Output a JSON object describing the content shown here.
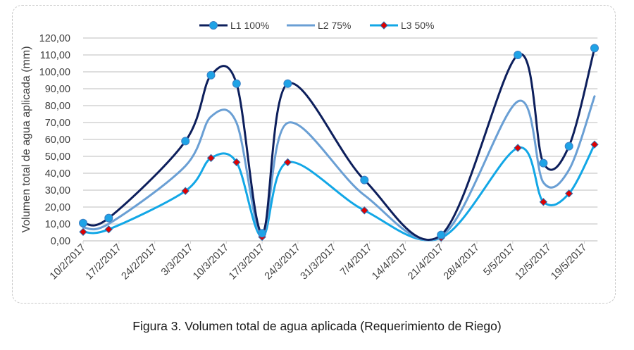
{
  "chart_data": {
    "type": "line",
    "smooth": true,
    "title": "",
    "caption": "Figura 3. Volumen total de agua aplicada (Requerimiento de Riego)",
    "ylabel": "Volumen total de agua aplicada (mm)",
    "xlabel": "",
    "ylim": [
      0,
      120
    ],
    "yticks": [
      0,
      10,
      20,
      30,
      40,
      50,
      60,
      70,
      80,
      90,
      100,
      110,
      120
    ],
    "ytick_labels": [
      "0,00",
      "10,00",
      "20,00",
      "30,00",
      "40,00",
      "50,00",
      "60,00",
      "70,00",
      "80,00",
      "90,00",
      "100,00",
      "110,00",
      "120,00"
    ],
    "x_axis": {
      "start_date": "2017-02-10",
      "tick_interval_days": 7,
      "tick_labels": [
        "10/2/2017",
        "17/2/2017",
        "24/2/2017",
        "3/3/2017",
        "10/3/2017",
        "17/3/2017",
        "24/3/2017",
        "31/3/2017",
        "7/4/2017",
        "14/4/2017",
        "21/4/2017",
        "28/4/2017",
        "5/5/2017",
        "12/5/2017",
        "19/5/2017"
      ],
      "range_days": [
        0,
        101
      ]
    },
    "grid": true,
    "legend_position": "top",
    "x_days": [
      0,
      5,
      20,
      25,
      30,
      35,
      40,
      55,
      70,
      85,
      90,
      95,
      100
    ],
    "series": [
      {
        "name": "L1 100%",
        "color": "#0d1f5c",
        "marker": "circle",
        "marker_color": "#1fa3e6",
        "values": [
          10.5,
          13.5,
          59,
          98,
          93,
          4.5,
          93,
          36,
          3.5,
          110,
          46,
          56,
          114
        ]
      },
      {
        "name": "L2 75%",
        "color": "#6a9fd4",
        "marker": "none",
        "marker_color": "",
        "values": [
          7.9,
          10.1,
          44.3,
          73.5,
          69.8,
          3.4,
          69.8,
          27,
          2.6,
          82.5,
          34.5,
          42,
          85.5
        ]
      },
      {
        "name": "L3 50%",
        "color": "#12a7e6",
        "marker": "diamond",
        "marker_color": "#e00000",
        "values": [
          5.3,
          6.8,
          29.5,
          49,
          46.5,
          2.3,
          46.5,
          18,
          1.8,
          55,
          23,
          28,
          57
        ]
      }
    ]
  }
}
